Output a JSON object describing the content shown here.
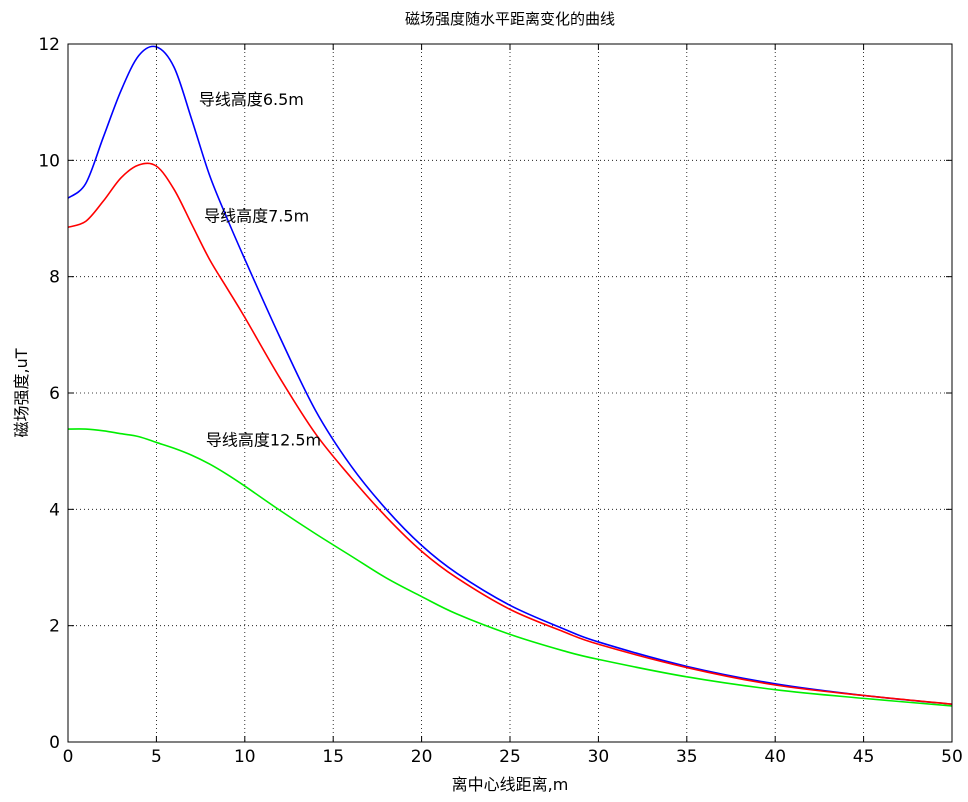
{
  "chart_data": {
    "type": "line",
    "title": "磁场强度随水平距离变化的曲线",
    "xlabel": "离中心线距离,m",
    "ylabel": "磁场强度,uT",
    "xlim": [
      0,
      50
    ],
    "ylim": [
      0,
      12
    ],
    "xticks": [
      0,
      5,
      10,
      15,
      20,
      25,
      30,
      35,
      40,
      45,
      50
    ],
    "yticks": [
      0,
      2,
      4,
      6,
      8,
      10,
      12
    ],
    "grid": true,
    "series": [
      {
        "name": "导线高度6.5m",
        "color": "#0000ff",
        "x": [
          0,
          1,
          2,
          3,
          4,
          5,
          6,
          7,
          8,
          9,
          10,
          12,
          14,
          16,
          18,
          20,
          22,
          25,
          28,
          30,
          35,
          40,
          45,
          50
        ],
        "y": [
          9.35,
          9.6,
          10.4,
          11.2,
          11.8,
          11.95,
          11.6,
          10.7,
          9.75,
          9.0,
          8.3,
          6.95,
          5.7,
          4.75,
          4.0,
          3.38,
          2.9,
          2.35,
          1.95,
          1.72,
          1.3,
          1.0,
          0.8,
          0.65
        ]
      },
      {
        "name": "导线高度7.5m",
        "color": "#ff0000",
        "x": [
          0,
          1,
          2,
          3,
          4,
          5,
          6,
          7,
          8,
          9,
          10,
          12,
          14,
          16,
          18,
          20,
          22,
          25,
          28,
          30,
          35,
          40,
          45,
          50
        ],
        "y": [
          8.85,
          8.95,
          9.3,
          9.7,
          9.92,
          9.9,
          9.5,
          8.9,
          8.3,
          7.8,
          7.3,
          6.25,
          5.3,
          4.55,
          3.87,
          3.28,
          2.82,
          2.28,
          1.9,
          1.68,
          1.28,
          0.98,
          0.8,
          0.65
        ]
      },
      {
        "name": "导线高度12.5m",
        "color": "#00ee00",
        "x": [
          0,
          1,
          2,
          3,
          4,
          5,
          6,
          7,
          8,
          9,
          10,
          12,
          14,
          16,
          18,
          20,
          22,
          25,
          28,
          30,
          35,
          40,
          45,
          50
        ],
        "y": [
          5.38,
          5.38,
          5.35,
          5.3,
          5.25,
          5.15,
          5.05,
          4.93,
          4.78,
          4.6,
          4.4,
          3.98,
          3.58,
          3.2,
          2.82,
          2.5,
          2.2,
          1.85,
          1.57,
          1.42,
          1.12,
          0.9,
          0.75,
          0.62
        ]
      }
    ],
    "annotations": [
      {
        "text": "导线高度6.5m",
        "x": 7.4,
        "y": 10.95
      },
      {
        "text": "导线高度7.5m",
        "x": 7.7,
        "y": 8.95
      },
      {
        "text": "导线高度12.5m",
        "x": 7.8,
        "y": 5.1
      }
    ]
  }
}
